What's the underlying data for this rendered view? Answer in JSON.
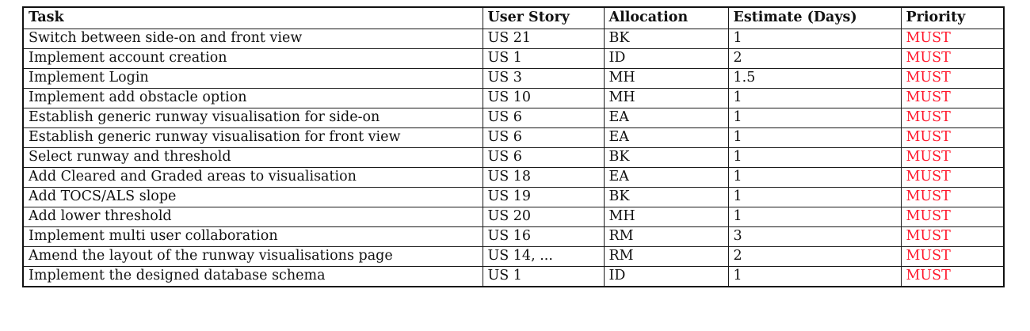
{
  "header": {
    "task": "Task",
    "user_story": "User Story",
    "allocation": "Allocation",
    "estimate": "Estimate (Days)",
    "priority": "Priority"
  },
  "colors": {
    "priority_text": "#ff1a2e",
    "border": "#1a1a1a"
  },
  "rows": [
    {
      "task": "Switch between side-on and front view",
      "user_story": "US 21",
      "allocation": "BK",
      "estimate": "1",
      "priority": "MUST"
    },
    {
      "task": "Implement account creation",
      "user_story": "US 1",
      "allocation": "ID",
      "estimate": "2",
      "priority": "MUST"
    },
    {
      "task": "Implement Login",
      "user_story": "US 3",
      "allocation": "MH",
      "estimate": "1.5",
      "priority": "MUST"
    },
    {
      "task": "Implement add obstacle option",
      "user_story": "US 10",
      "allocation": "MH",
      "estimate": "1",
      "priority": "MUST"
    },
    {
      "task": "Establish generic runway visualisation for side-on",
      "user_story": "US 6",
      "allocation": "EA",
      "estimate": "1",
      "priority": "MUST"
    },
    {
      "task": "Establish generic runway visualisation for front view",
      "user_story": "US 6",
      "allocation": "EA",
      "estimate": "1",
      "priority": "MUST"
    },
    {
      "task": "Select runway and threshold",
      "user_story": "US 6",
      "allocation": "BK",
      "estimate": "1",
      "priority": "MUST"
    },
    {
      "task": "Add Cleared and Graded areas to visualisation",
      "user_story": "US 18",
      "allocation": "EA",
      "estimate": "1",
      "priority": "MUST"
    },
    {
      "task": "Add TOCS/ALS slope",
      "user_story": "US 19",
      "allocation": "BK",
      "estimate": "1",
      "priority": "MUST"
    },
    {
      "task": "Add lower threshold",
      "user_story": "US 20",
      "allocation": "MH",
      "estimate": "1",
      "priority": "MUST"
    },
    {
      "task": "Implement multi user collaboration",
      "user_story": "US 16",
      "allocation": "RM",
      "estimate": "3",
      "priority": "MUST"
    },
    {
      "task": "Amend the layout of the runway visualisations page",
      "user_story": "US 14, ...",
      "allocation": "RM",
      "estimate": "2",
      "priority": "MUST"
    },
    {
      "task": "Implement the designed database schema",
      "user_story": "US 1",
      "allocation": "ID",
      "estimate": "1",
      "priority": "MUST"
    }
  ]
}
